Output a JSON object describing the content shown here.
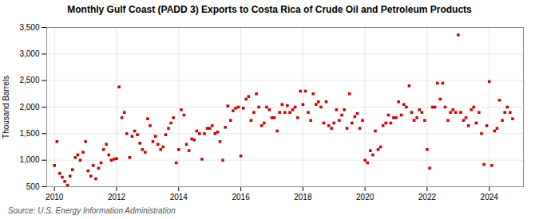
{
  "chart_data": {
    "type": "scatter",
    "title": "Monthly Gulf Coast (PADD 3) Exports to Costa Rica of Crude Oil and Petroleum Products",
    "ylabel": "Thousand Barrels",
    "source": "Source: U.S. Energy Information Administration",
    "color": "#cc0000",
    "marker": "square",
    "grid": true,
    "xlim": [
      2009.75,
      2025.1
    ],
    "xticks": [
      2010,
      2012,
      2014,
      2016,
      2018,
      2020,
      2022,
      2024
    ],
    "ylim": [
      500,
      3500
    ],
    "yticks": [
      500,
      {
        "value": 1000,
        "label": "1,000"
      },
      {
        "value": 1500,
        "label": "1,500"
      },
      {
        "value": 2000,
        "label": "2,000"
      },
      {
        "value": 2500,
        "label": "2,500"
      },
      {
        "value": 3000,
        "label": "3,000"
      },
      {
        "value": 3500,
        "label": "3,500"
      }
    ],
    "x": [
      2010.0,
      2010.08,
      2010.17,
      2010.25,
      2010.33,
      2010.42,
      2010.5,
      2010.58,
      2010.67,
      2010.75,
      2010.83,
      2010.92,
      2011.0,
      2011.08,
      2011.17,
      2011.25,
      2011.33,
      2011.42,
      2011.5,
      2011.58,
      2011.67,
      2011.75,
      2011.83,
      2011.92,
      2012.0,
      2012.08,
      2012.17,
      2012.25,
      2012.33,
      2012.42,
      2012.5,
      2012.58,
      2012.67,
      2012.75,
      2012.83,
      2012.92,
      2013.0,
      2013.08,
      2013.17,
      2013.25,
      2013.33,
      2013.42,
      2013.5,
      2013.58,
      2013.67,
      2013.75,
      2013.83,
      2013.92,
      2014.0,
      2014.08,
      2014.17,
      2014.25,
      2014.33,
      2014.42,
      2014.5,
      2014.58,
      2014.67,
      2014.75,
      2014.83,
      2014.92,
      2015.0,
      2015.08,
      2015.17,
      2015.25,
      2015.33,
      2015.42,
      2015.5,
      2015.58,
      2015.67,
      2015.75,
      2015.83,
      2015.92,
      2016.0,
      2016.08,
      2016.17,
      2016.25,
      2016.33,
      2016.42,
      2016.5,
      2016.58,
      2016.67,
      2016.75,
      2016.83,
      2016.92,
      2017.0,
      2017.08,
      2017.17,
      2017.25,
      2017.33,
      2017.42,
      2017.5,
      2017.58,
      2017.67,
      2017.75,
      2017.83,
      2017.92,
      2018.0,
      2018.08,
      2018.17,
      2018.25,
      2018.33,
      2018.42,
      2018.5,
      2018.58,
      2018.67,
      2018.75,
      2018.83,
      2018.92,
      2019.0,
      2019.08,
      2019.17,
      2019.25,
      2019.33,
      2019.42,
      2019.5,
      2019.58,
      2019.67,
      2019.75,
      2019.83,
      2019.92,
      2020.0,
      2020.08,
      2020.17,
      2020.25,
      2020.33,
      2020.42,
      2020.5,
      2020.58,
      2020.67,
      2020.75,
      2020.83,
      2020.92,
      2021.0,
      2021.08,
      2021.17,
      2021.25,
      2021.33,
      2021.42,
      2021.5,
      2021.58,
      2021.67,
      2021.75,
      2021.83,
      2021.92,
      2022.0,
      2022.08,
      2022.17,
      2022.25,
      2022.33,
      2022.42,
      2022.5,
      2022.58,
      2022.67,
      2022.75,
      2022.83,
      2022.92,
      2023.0,
      2023.08,
      2023.17,
      2023.25,
      2023.33,
      2023.42,
      2023.5,
      2023.58,
      2023.67,
      2023.75,
      2023.83,
      2023.92,
      2024.0,
      2024.08,
      2024.17,
      2024.25,
      2024.33,
      2024.42,
      2024.5,
      2024.58,
      2024.67,
      2024.75
    ],
    "values": [
      900,
      1350,
      750,
      680,
      600,
      530,
      700,
      820,
      1050,
      1100,
      1000,
      1150,
      1350,
      800,
      700,
      900,
      650,
      850,
      950,
      1200,
      1300,
      1100,
      1000,
      1020,
      1030,
      2380,
      1800,
      1900,
      1500,
      1050,
      1450,
      1550,
      1480,
      1320,
      1200,
      1150,
      1780,
      1650,
      1350,
      1450,
      1300,
      1200,
      1250,
      1480,
      1600,
      1700,
      1800,
      950,
      1200,
      1950,
      1850,
      1300,
      1180,
      1400,
      1380,
      1550,
      1500,
      1020,
      1500,
      1600,
      1600,
      1650,
      1500,
      1530,
      1350,
      1000,
      1620,
      2020,
      1750,
      1930,
      1980,
      2000,
      1080,
      1980,
      2150,
      2200,
      1750,
      1900,
      2250,
      2000,
      1650,
      1700,
      2000,
      1950,
      1800,
      1800,
      1550,
      1900,
      2050,
      1900,
      2030,
      1900,
      1950,
      2000,
      1800,
      2300,
      2050,
      2300,
      1900,
      1750,
      2250,
      2050,
      2100,
      2000,
      1700,
      2100,
      1650,
      1600,
      1700,
      1950,
      1750,
      1850,
      1950,
      1600,
      2250,
      1700,
      1820,
      1880,
      1600,
      1750,
      1000,
      950,
      1180,
      1100,
      1550,
      1200,
      1250,
      1650,
      1700,
      1850,
      1700,
      1800,
      1800,
      2100,
      1850,
      2050,
      2000,
      2400,
      1900,
      1750,
      1800,
      1950,
      1900,
      1750,
      1200,
      850,
      2000,
      2000,
      2450,
      2150,
      2450,
      2000,
      1750,
      1900,
      1950,
      1900,
      3360,
      1900,
      1750,
      1800,
      1650,
      1950,
      2000,
      1700,
      1900,
      1500,
      920,
      1650,
      2480,
      900,
      1550,
      1600,
      2130,
      1750,
      1900,
      2000,
      1900,
      1780
    ]
  }
}
